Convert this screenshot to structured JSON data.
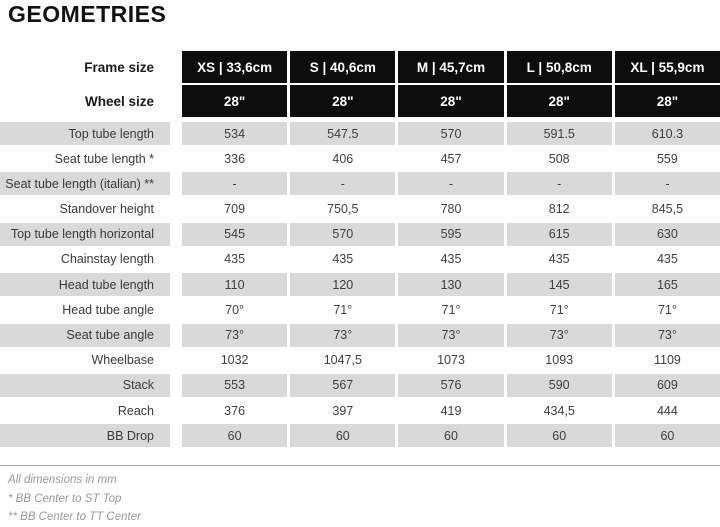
{
  "title": "GEOMETRIES",
  "table": {
    "header": {
      "frame_size_label": "Frame size",
      "wheel_size_label": "Wheel size",
      "columns": [
        {
          "frame": "XS | 33,6cm",
          "wheel": "28\""
        },
        {
          "frame": "S | 40,6cm",
          "wheel": "28\""
        },
        {
          "frame": "M | 45,7cm",
          "wheel": "28\""
        },
        {
          "frame": "L | 50,8cm",
          "wheel": "28\""
        },
        {
          "frame": "XL | 55,9cm",
          "wheel": "28\""
        }
      ]
    },
    "rows": [
      {
        "label": "Top tube length",
        "values": [
          "534",
          "547.5",
          "570",
          "591.5",
          "610.3"
        ]
      },
      {
        "label": "Seat tube length *",
        "values": [
          "336",
          "406",
          "457",
          "508",
          "559"
        ]
      },
      {
        "label": "Seat tube length (italian) **",
        "values": [
          "-",
          "-",
          "-",
          "-",
          "-"
        ]
      },
      {
        "label": "Standover height",
        "values": [
          "709",
          "750,5",
          "780",
          "812",
          "845,5"
        ]
      },
      {
        "label": "Top tube length horizontal",
        "values": [
          "545",
          "570",
          "595",
          "615",
          "630"
        ]
      },
      {
        "label": "Chainstay length",
        "values": [
          "435",
          "435",
          "435",
          "435",
          "435"
        ]
      },
      {
        "label": "Head tube length",
        "values": [
          "110",
          "120",
          "130",
          "145",
          "165"
        ]
      },
      {
        "label": "Head tube angle",
        "values": [
          "70°",
          "71°",
          "71°",
          "71°",
          "71°"
        ]
      },
      {
        "label": "Seat tube angle",
        "values": [
          "73°",
          "73°",
          "73°",
          "73°",
          "73°"
        ]
      },
      {
        "label": "Wheelbase",
        "values": [
          "1032",
          "1047,5",
          "1073",
          "1093",
          "1109"
        ]
      },
      {
        "label": "Stack",
        "values": [
          "553",
          "567",
          "576",
          "590",
          "609"
        ]
      },
      {
        "label": "Reach",
        "values": [
          "376",
          "397",
          "419",
          "434,5",
          "444"
        ]
      },
      {
        "label": "BB Drop",
        "values": [
          "60",
          "60",
          "60",
          "60",
          "60"
        ]
      }
    ]
  },
  "footnotes": [
    "All dimensions in mm",
    "* BB Center to ST Top",
    "** BB Center to TT Center"
  ],
  "colors": {
    "header_bg": "#0d0d0d",
    "alt_row_bg": "#d9d9d9",
    "note_text": "#999999",
    "rule": "#a3a3a3"
  }
}
